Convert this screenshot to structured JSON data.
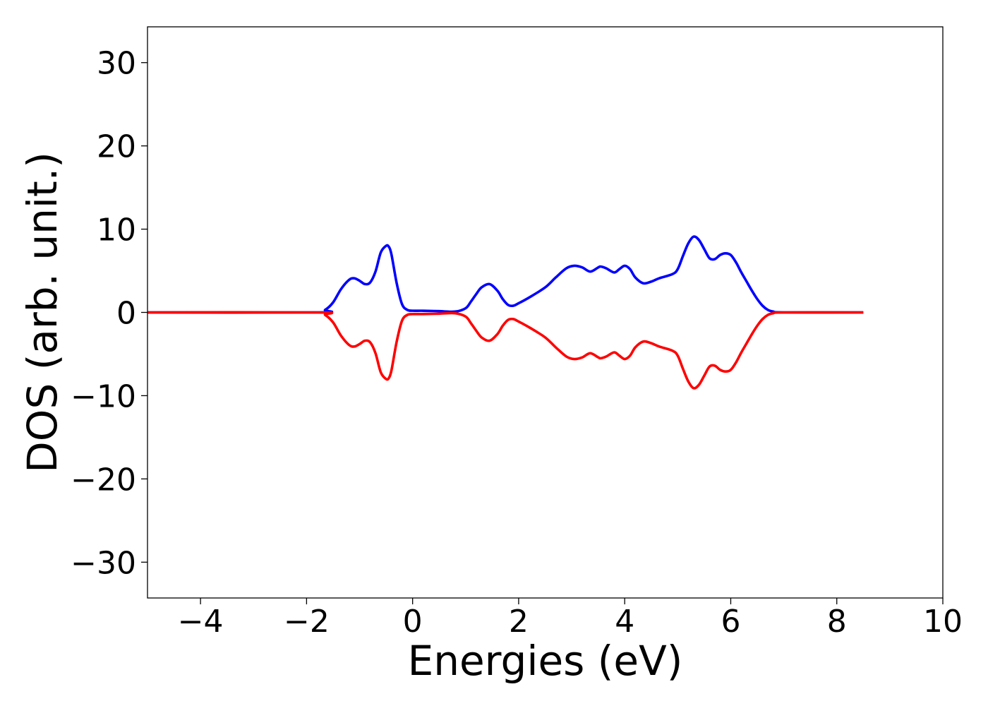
{
  "chart_data": {
    "type": "line",
    "title": "",
    "xlabel": "Energies (eV)",
    "ylabel": "DOS (arb. unit.)",
    "xlim": [
      -5,
      10
    ],
    "ylim": [
      -34.3,
      34.3
    ],
    "xticks": [
      -4,
      -2,
      0,
      2,
      4,
      6,
      8,
      10
    ],
    "xtick_labels": [
      "−4",
      "−2",
      "0",
      "2",
      "4",
      "6",
      "8",
      "10"
    ],
    "yticks": [
      30,
      20,
      10,
      0,
      -10,
      -20,
      -30
    ],
    "ytick_labels": [
      "30",
      "20",
      "10",
      "0",
      "−10",
      "−20",
      "−30"
    ],
    "grid": false,
    "legend": "none",
    "series": [
      {
        "color": "#0000ff",
        "x": [
          -5.0,
          -1.8,
          -1.65,
          -1.5,
          -1.35,
          -1.2,
          -1.1,
          -1.0,
          -0.9,
          -0.8,
          -0.7,
          -0.6,
          -0.5,
          -0.45,
          -0.4,
          -0.3,
          -0.2,
          -0.1,
          0.0,
          0.2,
          0.5,
          0.8,
          1.0,
          1.1,
          1.2,
          1.3,
          1.45,
          1.6,
          1.7,
          1.8,
          1.9,
          2.0,
          2.2,
          2.5,
          2.7,
          2.9,
          3.05,
          3.2,
          3.35,
          3.5,
          3.55,
          3.65,
          3.8,
          3.9,
          4.0,
          4.1,
          4.2,
          4.35,
          4.5,
          4.65,
          4.9,
          5.0,
          5.1,
          5.2,
          5.3,
          5.4,
          5.5,
          5.6,
          5.7,
          5.8,
          5.9,
          6.0,
          6.1,
          6.2,
          6.3,
          6.4,
          6.5,
          6.6,
          6.7,
          6.8,
          7.0,
          8.5
        ],
        "y": [
          0,
          0,
          0.3,
          1.2,
          2.8,
          3.9,
          4.1,
          3.8,
          3.4,
          3.6,
          4.9,
          7.2,
          8.0,
          7.9,
          7.0,
          3.5,
          1.0,
          0.3,
          0.2,
          0.2,
          0.15,
          0.1,
          0.5,
          1.3,
          2.2,
          3.0,
          3.4,
          2.6,
          1.6,
          0.9,
          0.8,
          1.1,
          1.8,
          3.0,
          4.2,
          5.3,
          5.6,
          5.4,
          4.9,
          5.4,
          5.5,
          5.3,
          4.8,
          5.2,
          5.6,
          5.2,
          4.2,
          3.5,
          3.7,
          4.1,
          4.6,
          5.2,
          6.8,
          8.3,
          9.1,
          8.7,
          7.6,
          6.5,
          6.4,
          6.9,
          7.1,
          6.9,
          6.0,
          4.8,
          3.7,
          2.6,
          1.6,
          0.8,
          0.3,
          0.1,
          0,
          0
        ]
      },
      {
        "color": "#ff0000",
        "x": [
          -5.0,
          -1.8,
          -1.65,
          -1.5,
          -1.35,
          -1.2,
          -1.1,
          -1.0,
          -0.9,
          -0.8,
          -0.7,
          -0.6,
          -0.5,
          -0.45,
          -0.4,
          -0.3,
          -0.2,
          -0.1,
          0.0,
          0.2,
          0.5,
          0.8,
          1.0,
          1.1,
          1.2,
          1.3,
          1.45,
          1.6,
          1.7,
          1.8,
          1.9,
          2.0,
          2.2,
          2.5,
          2.7,
          2.9,
          3.05,
          3.2,
          3.35,
          3.5,
          3.55,
          3.65,
          3.8,
          3.9,
          4.0,
          4.1,
          4.2,
          4.35,
          4.5,
          4.65,
          4.9,
          5.0,
          5.1,
          5.2,
          5.3,
          5.4,
          5.5,
          5.6,
          5.7,
          5.8,
          5.9,
          6.0,
          6.1,
          6.2,
          6.3,
          6.4,
          6.5,
          6.6,
          6.7,
          6.8,
          7.0,
          8.5
        ],
        "y": [
          0,
          0,
          -0.3,
          -1.2,
          -2.8,
          -3.9,
          -4.1,
          -3.8,
          -3.4,
          -3.6,
          -4.9,
          -7.2,
          -8.0,
          -7.9,
          -7.0,
          -3.5,
          -1.0,
          -0.3,
          -0.2,
          -0.2,
          -0.15,
          -0.1,
          -0.5,
          -1.3,
          -2.2,
          -3.0,
          -3.4,
          -2.6,
          -1.6,
          -0.9,
          -0.8,
          -1.1,
          -1.8,
          -3.0,
          -4.2,
          -5.3,
          -5.6,
          -5.4,
          -4.9,
          -5.4,
          -5.5,
          -5.3,
          -4.8,
          -5.2,
          -5.6,
          -5.2,
          -4.2,
          -3.5,
          -3.7,
          -4.1,
          -4.6,
          -5.2,
          -6.8,
          -8.3,
          -9.1,
          -8.7,
          -7.6,
          -6.5,
          -6.4,
          -6.9,
          -7.1,
          -6.9,
          -6.0,
          -4.8,
          -3.7,
          -2.6,
          -1.6,
          -0.8,
          -0.3,
          -0.1,
          0,
          0
        ]
      }
    ]
  }
}
